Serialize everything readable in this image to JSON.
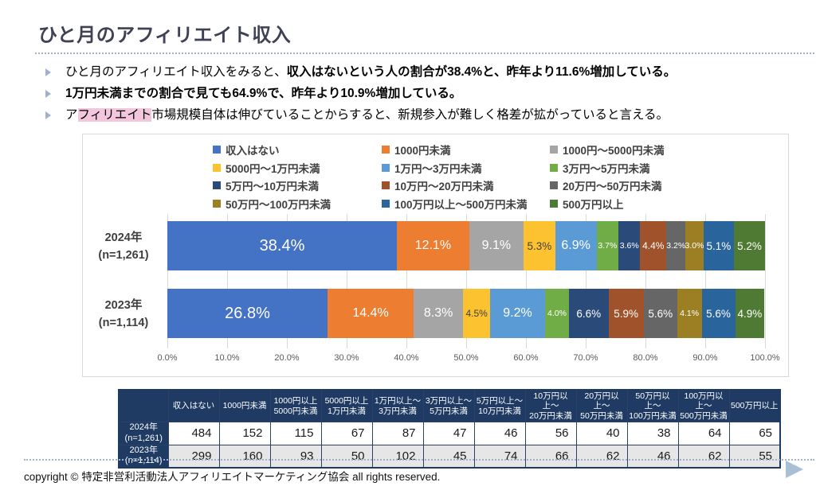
{
  "title": "ひと月のアフィリエイト収入",
  "bullets": [
    {
      "segments": [
        {
          "text": "ひと月のアフィリエイト収入をみると、",
          "style": "normal"
        },
        {
          "text": "収入はないという人の割合が38.4%と、昨年より11.6%増加している。",
          "style": "bold"
        }
      ]
    },
    {
      "segments": [
        {
          "text": "1万円未満までの割合で見ても64.9%で、昨年より10.9%増加している。",
          "style": "bold"
        }
      ]
    },
    {
      "segments": [
        {
          "text": "ア",
          "style": "normal"
        },
        {
          "text": "フィリエイト",
          "style": "highlight"
        },
        {
          "text": "市場規模自体は伸びていることからすると、新規参入が難しく格差が拡がっていると言える。",
          "style": "normal"
        }
      ]
    }
  ],
  "chart_data": {
    "type": "bar",
    "stacked": true,
    "orientation": "horizontal",
    "unit": "%",
    "grid": true,
    "legend_position": "top",
    "xlim": [
      0,
      100
    ],
    "x_ticks": [
      "0.0%",
      "10.0%",
      "20.0%",
      "30.0%",
      "40.0%",
      "50.0%",
      "60.0%",
      "70.0%",
      "80.0%",
      "90.0%",
      "100.0%"
    ],
    "categories": [
      "2024年 (n=1,261)",
      "2023年 (n=1,114)"
    ],
    "category_labels": [
      [
        "2024年",
        "(n=1,261)"
      ],
      [
        "2023年",
        "(n=1,114)"
      ]
    ],
    "series": [
      {
        "name": "収入はない",
        "color": "#4472C4",
        "values": [
          38.4,
          26.8
        ]
      },
      {
        "name": "1000円未満",
        "color": "#ED7D31",
        "values": [
          12.1,
          14.4
        ]
      },
      {
        "name": "1000円〜5000円未満",
        "color": "#A5A5A5",
        "values": [
          9.1,
          8.3
        ]
      },
      {
        "name": "5000円〜1万円未満",
        "color": "#FDC230",
        "values": [
          5.3,
          4.5
        ],
        "label_dark": true
      },
      {
        "name": "1万円〜3万円未満",
        "color": "#5B9BD5",
        "values": [
          6.9,
          9.2
        ]
      },
      {
        "name": "3万円〜5万円未満",
        "color": "#70AD47",
        "values": [
          3.7,
          4.0
        ]
      },
      {
        "name": "5万円〜10万円未満",
        "color": "#2A4A7A",
        "values": [
          3.6,
          6.6
        ]
      },
      {
        "name": "10万円〜20万円未満",
        "color": "#A0522A",
        "values": [
          4.4,
          5.9
        ]
      },
      {
        "name": "20万円〜50万円未満",
        "color": "#666666",
        "values": [
          3.2,
          5.6
        ]
      },
      {
        "name": "50万円〜100万円未満",
        "color": "#9D7F23",
        "values": [
          3.0,
          4.1
        ]
      },
      {
        "name": "100万円以上〜500万円未満",
        "color": "#2A649C",
        "values": [
          5.1,
          5.6
        ]
      },
      {
        "name": "500万円以上",
        "color": "#4E7A33",
        "values": [
          5.2,
          4.9
        ]
      }
    ]
  },
  "table": {
    "col_headers": [
      "収入はない",
      "1000円未満",
      "1000円以上\n5000円未満",
      "5000円以上\n1万円未満",
      "1万円以上〜\n3万円未満",
      "3万円以上〜\n5万円未満",
      "5万円以上〜\n10万円未満",
      "10万円以上〜\n20万円未満",
      "20万円以上〜\n50万円未満",
      "50万円以上〜\n100万円未満",
      "100万円以上〜\n500万円未満",
      "500万円以上"
    ],
    "rows": [
      {
        "label": "2024年",
        "sub": "(n=1,261)",
        "values": [
          484,
          152,
          115,
          67,
          87,
          47,
          46,
          56,
          40,
          38,
          64,
          65
        ]
      },
      {
        "label": "2023年",
        "sub": "(n=1,114)",
        "values": [
          299,
          160,
          93,
          50,
          102,
          45,
          74,
          66,
          62,
          46,
          62,
          55
        ]
      }
    ]
  },
  "footer": {
    "copyright": "copyright © 特定非営利活動法人アフィリエイトマーケティング協会 all rights reserved.",
    "next_icon": "right-triangle"
  },
  "colors": {
    "title_color": "#3F4254",
    "divider": "#9DB3CD",
    "bullet_arrow": "#9FB2CB",
    "highlight_pink": "#F2C7DD",
    "chart_border": "#D9D9D9",
    "gridline": "#D9D9D9",
    "table_navy": "#1F3A63",
    "table_border": "#2B4168",
    "table_alt_row": "#E7E6E6",
    "arrow": "#A9BFD6"
  }
}
